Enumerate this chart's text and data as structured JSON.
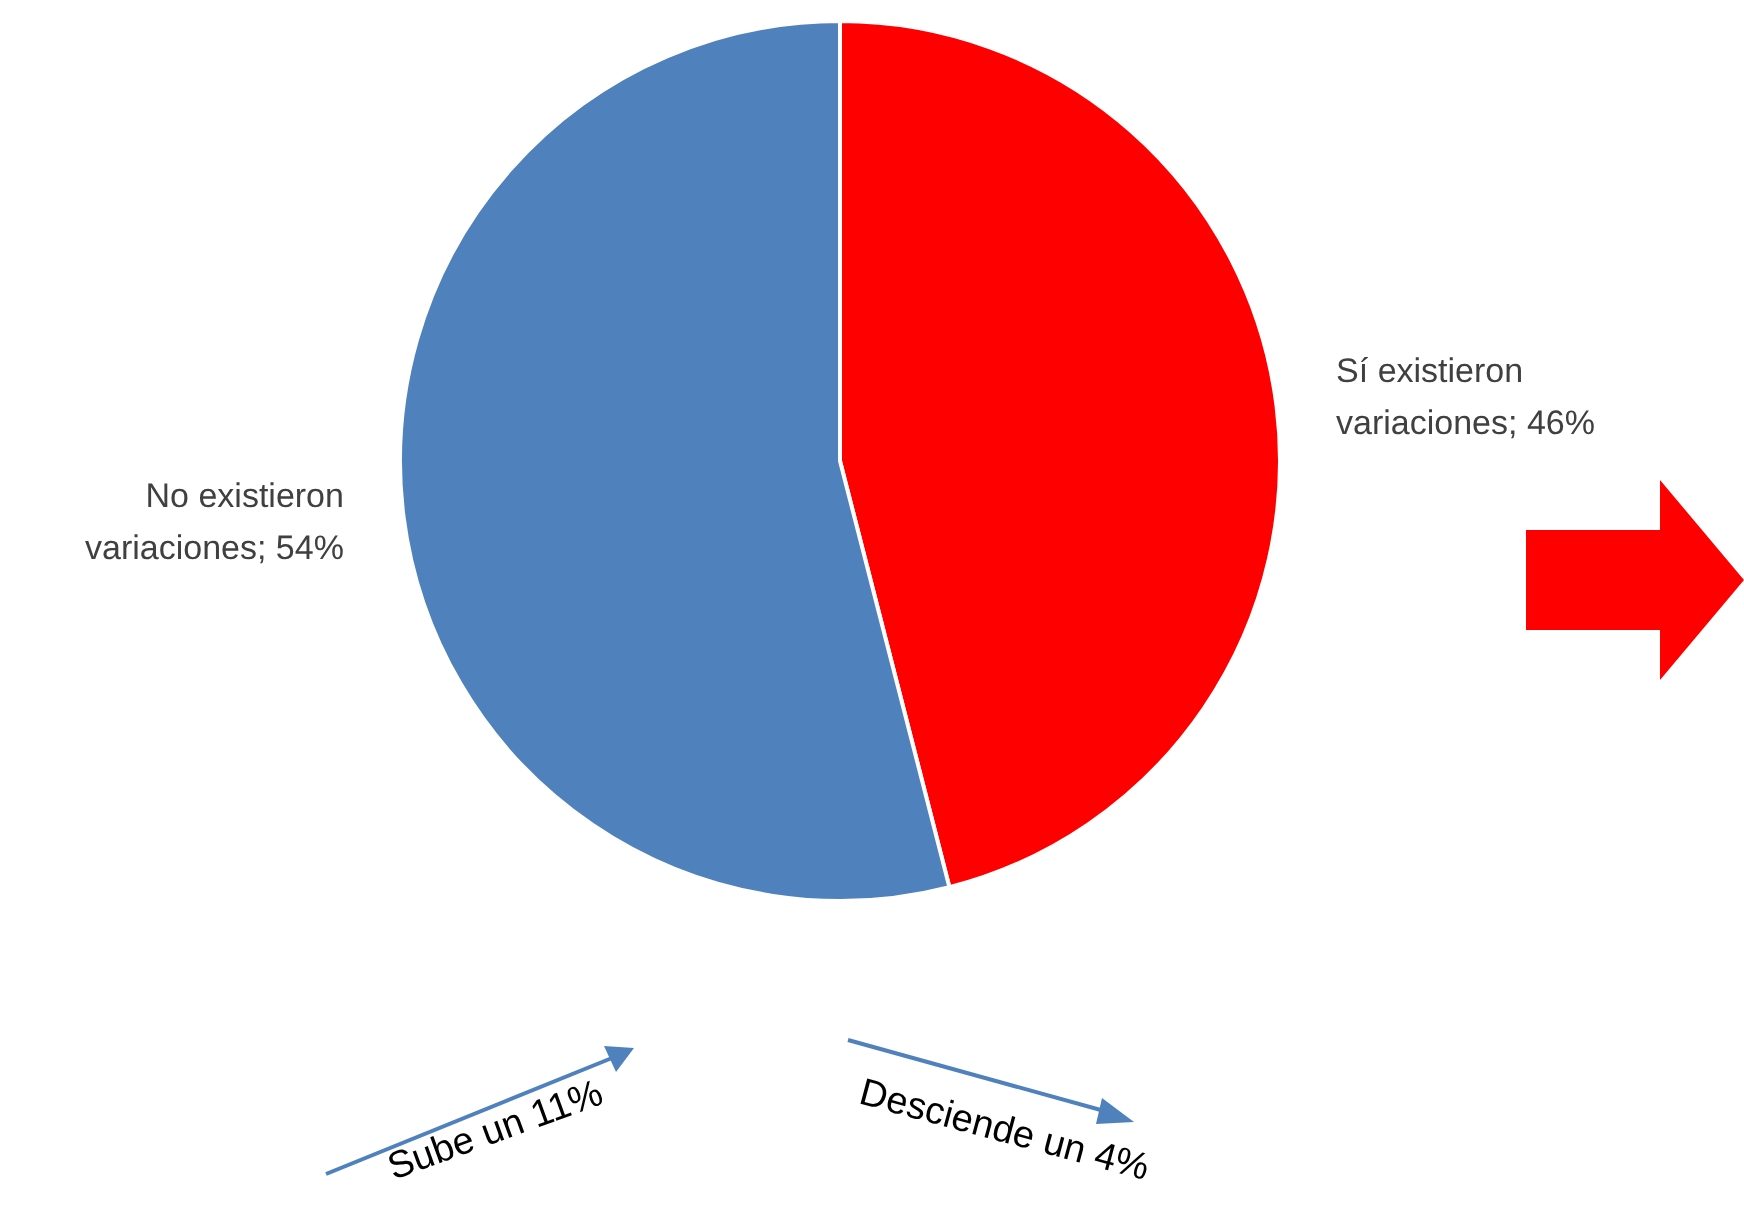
{
  "chart_data": {
    "type": "pie",
    "categories": [
      "Sí existieron variaciones",
      "No existieron variaciones"
    ],
    "values": [
      46,
      54
    ],
    "value_labels": [
      "46%",
      "54%"
    ],
    "colors": [
      "#ff0000",
      "#4f81bd"
    ],
    "data_labels": true,
    "legend": false,
    "annotations": [
      "Sube un 11%",
      "Desciende un 4%"
    ]
  }
}
